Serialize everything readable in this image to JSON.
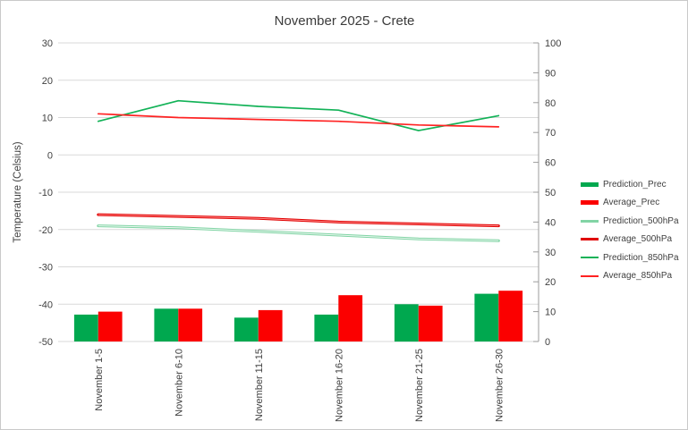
{
  "title": "November 2025 - Crete",
  "chart_data": {
    "type": "combo-bar-line",
    "title": "November 2025 - Crete",
    "ylabel": "Temperature (Celsius)",
    "categories": [
      "November 1-5",
      "November 6-10",
      "November 11-15",
      "November 16-20",
      "November 21-25",
      "November 26-30"
    ],
    "axes": {
      "left": {
        "label": "Temperature (Celsius)",
        "min": -50,
        "max": 30,
        "step": 10
      },
      "right": {
        "min": 0,
        "max": 100,
        "step": 10
      }
    },
    "grid": true,
    "legend_position": "right",
    "series": [
      {
        "name": "Prediction_Prec",
        "type": "bar",
        "axis": "right",
        "color": "#00A84F",
        "values": [
          9,
          11,
          8,
          9,
          12.5,
          16
        ]
      },
      {
        "name": "Average_Prec",
        "type": "bar",
        "axis": "right",
        "color": "#FB0000",
        "values": [
          10,
          11,
          10.5,
          15.5,
          12,
          17
        ]
      },
      {
        "name": "Prediction_500hPa",
        "type": "line",
        "axis": "left",
        "color": "#82D4A5",
        "core_color": "#E7F7EE",
        "width": 3,
        "values": [
          -19,
          -19.5,
          -20.5,
          -21.5,
          -22.5,
          -23
        ]
      },
      {
        "name": "Average_500hPa",
        "type": "line",
        "axis": "left",
        "color": "#E00000",
        "core_color": "#FF8B8B",
        "width": 3,
        "values": [
          -16,
          -16.5,
          -17,
          -18,
          -18.5,
          -19
        ]
      },
      {
        "name": "Prediction_850hPa",
        "type": "line",
        "axis": "left",
        "color": "#12B257",
        "width": 1.7,
        "values": [
          9,
          14.5,
          13,
          12,
          6.5,
          10.5
        ]
      },
      {
        "name": "Average_850hPa",
        "type": "line",
        "axis": "left",
        "color": "#FF2222",
        "width": 1.7,
        "values": [
          11,
          10,
          9.5,
          9,
          8,
          7.5
        ]
      }
    ],
    "colors": {
      "grid": "#D9D9D9",
      "axis": "#9B9B9B",
      "text": "#404040"
    }
  }
}
